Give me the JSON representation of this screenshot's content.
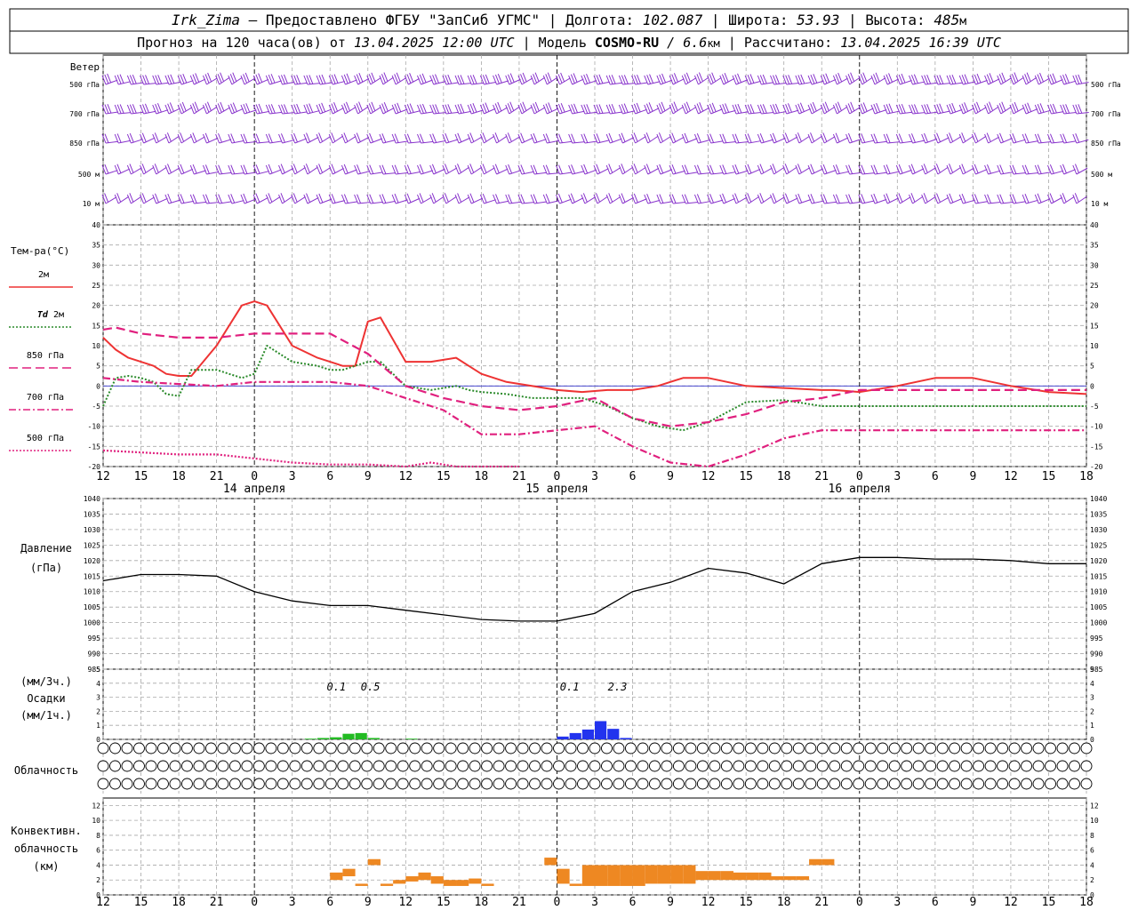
{
  "header": {
    "station": "Irk_Zima",
    "provider": " – Предоставлено ФГБУ \"ЗапСиб УГМС\" | ",
    "lon_label": "Долгота: ",
    "lon_value": "102.087",
    "lat_label": " | Широта: ",
    "lat_value": "53.93",
    "alt_label": " | Высота: ",
    "alt_value": "485",
    "alt_unit": "м",
    "forecast_label": "Прогноз на 120 часа(ов) от ",
    "forecast_start": "13.04.2025 12:00 UTC",
    "model_label": " | Модель ",
    "model_name": "COSMO-RU",
    "model_res": " / 6.6",
    "model_res_unit": "км",
    "calc_label": " | Рассчитано: ",
    "calc_time": "13.04.2025 16:39 UTC"
  },
  "labels": {
    "wind": "Ветер",
    "wind_levels": [
      "500 гПа",
      "700 гПа",
      "850 гПа",
      "500 м",
      "10  м"
    ],
    "temperature": "Тем-ра(°C)",
    "legend": [
      {
        "text": "2м",
        "prefix": "",
        "color": "#ee3333",
        "dash": ""
      },
      {
        "text": "2м",
        "prefix": "Td",
        "color": "#2a8a2a",
        "dash": "2 2"
      },
      {
        "text": "850 гПа",
        "prefix": "",
        "color": "#e0207e",
        "dash": "10 5"
      },
      {
        "text": "700 гПа",
        "prefix": "",
        "color": "#e0207e",
        "dash": "8 3 2 3"
      },
      {
        "text": "500 гПа",
        "prefix": "",
        "color": "#e0207e",
        "dash": "2 2"
      }
    ],
    "pressure": "Давление",
    "pressure_unit": "(гПа)",
    "precip": [
      "(мм/3ч.)",
      "Осадки",
      "(мм/1ч.)"
    ],
    "clouds": "Облачность",
    "convective": [
      "Конвективн.",
      "облачность",
      "(км)"
    ],
    "dates": [
      {
        "text": "14 апреля",
        "hour": 12
      },
      {
        "text": "15 апреля",
        "hour": 36
      },
      {
        "text": "16 апреля",
        "hour": 60
      }
    ],
    "precip_annotations": [
      {
        "text": "0.1",
        "hour": 18.5
      },
      {
        "text": "0.5",
        "hour": 21.2
      },
      {
        "text": "0.1",
        "hour": 37.0
      },
      {
        "text": "2.3",
        "hour": 40.8
      }
    ]
  },
  "chart_data": [
    {
      "type": "line",
      "title": "",
      "ylabel": "Тем-ра(°C)",
      "ylim": [
        -20,
        40
      ],
      "yticks": [
        -20,
        -15,
        -10,
        -5,
        0,
        5,
        10,
        15,
        20,
        25,
        30,
        35,
        40
      ],
      "hours": [
        0,
        3,
        6,
        9,
        12,
        15,
        18,
        21,
        24,
        27,
        30,
        33,
        36,
        39,
        42,
        45,
        48,
        51,
        54,
        57,
        60,
        63,
        66,
        69,
        72,
        75,
        78
      ],
      "time_labels": [
        "12",
        "15",
        "18",
        "21",
        "0",
        "3",
        "6",
        "9",
        "12",
        "15",
        "18",
        "21",
        "0",
        "3",
        "6",
        "9",
        "12",
        "15",
        "18",
        "21",
        "0",
        "3",
        "6",
        "9",
        "12",
        "15",
        "18"
      ],
      "x_domain": [
        0,
        78
      ],
      "series": [
        {
          "name": "2м",
          "color": "#ee3333",
          "width": 2,
          "dash": "",
          "x": [
            0,
            1,
            2,
            3,
            4,
            5,
            6,
            7,
            9,
            11,
            12,
            13,
            14,
            15,
            17,
            18,
            19,
            20,
            21,
            22,
            24,
            26,
            27,
            28,
            29,
            30,
            32,
            34,
            36,
            38,
            40,
            42,
            44,
            46,
            48,
            51,
            54,
            57,
            58,
            60,
            63,
            66,
            69,
            72,
            75,
            78
          ],
          "values": [
            12,
            9,
            7,
            6,
            5,
            3,
            2.5,
            2.5,
            10,
            20,
            21,
            20,
            15,
            10,
            7,
            6,
            5,
            5,
            16,
            17,
            6,
            6,
            6.5,
            7,
            5,
            3,
            1,
            0,
            -1,
            -1.5,
            -1,
            -1,
            0,
            2,
            2,
            0,
            -0.5,
            -1,
            -1,
            -1.5,
            0,
            2,
            2,
            0,
            -1.5,
            -2
          ]
        },
        {
          "name": "Td 2м",
          "color": "#2a8a2a",
          "width": 2,
          "dash": "2 2",
          "x": [
            0,
            1,
            2,
            3,
            4,
            5,
            6,
            7,
            9,
            11,
            12,
            13,
            14,
            15,
            17,
            18,
            19,
            20,
            21,
            22,
            24,
            26,
            27,
            28,
            29,
            30,
            32,
            34,
            36,
            38,
            40,
            42,
            44,
            46,
            48,
            51,
            54,
            57,
            58,
            60,
            63,
            66,
            69,
            72,
            75,
            78
          ],
          "values": [
            -5,
            2,
            2.5,
            2,
            1,
            -2,
            -2.5,
            4,
            4,
            2,
            3,
            10,
            8,
            6,
            5,
            4,
            4,
            5,
            6,
            6,
            0,
            -1,
            -0.5,
            0,
            -1,
            -1.5,
            -2,
            -3,
            -3,
            -3,
            -5,
            -8,
            -10,
            -11,
            -9,
            -4,
            -3.5,
            -5,
            -5,
            -5,
            -5,
            -5,
            -5,
            -5,
            -5,
            -5
          ]
        },
        {
          "name": "850 гПа",
          "color": "#e0207e",
          "width": 2.2,
          "dash": "10 5",
          "x": [
            0,
            1,
            3,
            6,
            9,
            12,
            15,
            18,
            21,
            24,
            27,
            30,
            33,
            36,
            39,
            42,
            45,
            48,
            51,
            54,
            57,
            60,
            63,
            66,
            69,
            72,
            75,
            78
          ],
          "values": [
            14,
            14.5,
            13,
            12,
            12,
            13,
            13,
            13,
            8,
            0,
            -3,
            -5,
            -6,
            -5,
            -3,
            -8,
            -10,
            -9,
            -7,
            -4,
            -3,
            -1,
            -1,
            -1,
            -1,
            -1,
            -1,
            -1
          ]
        },
        {
          "name": "700 гПа",
          "color": "#e0207e",
          "width": 2.2,
          "dash": "8 3 2 3",
          "x": [
            0,
            3,
            6,
            9,
            12,
            15,
            18,
            21,
            24,
            27,
            30,
            33,
            36,
            39,
            42,
            45,
            48,
            51,
            54,
            57,
            60,
            63,
            66,
            69,
            72,
            75,
            78
          ],
          "values": [
            2,
            1,
            0.5,
            0,
            1,
            1,
            1,
            0,
            -3,
            -6,
            -12,
            -12,
            -11,
            -10,
            -15,
            -19,
            -20,
            -17,
            -13,
            -11,
            -11,
            -11,
            -11,
            -11,
            -11,
            -11,
            -11
          ]
        },
        {
          "name": "500 гПа",
          "color": "#e0207e",
          "width": 2.2,
          "dash": "2 2",
          "x": [
            0,
            3,
            6,
            9,
            12,
            15,
            18,
            21,
            24,
            26,
            28,
            30,
            33
          ],
          "values": [
            -16,
            -16.5,
            -17,
            -17,
            -18,
            -19,
            -19.5,
            -19.5,
            -20,
            -19,
            -20,
            -20,
            -20
          ]
        }
      ]
    },
    {
      "type": "line",
      "title": "",
      "ylabel": "Давление (гПа)",
      "ylim": [
        985,
        1040
      ],
      "yticks": [
        985,
        990,
        995,
        1000,
        1005,
        1010,
        1015,
        1020,
        1025,
        1030,
        1035,
        1040
      ],
      "hours": [
        0,
        3,
        6,
        9,
        12,
        15,
        18,
        21,
        24,
        27,
        30,
        33,
        36,
        39,
        42,
        45,
        48,
        51,
        54,
        57,
        60,
        63,
        66,
        69,
        72,
        75,
        78
      ],
      "time_labels": [
        "12",
        "15",
        "18",
        "21",
        "0",
        "3",
        "6",
        "9",
        "12",
        "15",
        "18",
        "21",
        "0",
        "3",
        "6",
        "9",
        "12",
        "15",
        "18",
        "21",
        "0",
        "3",
        "6",
        "9",
        "12",
        "15",
        "18"
      ],
      "x_domain": [
        0,
        78
      ],
      "series": [
        {
          "name": "",
          "color": "#000000",
          "width": 1.3,
          "dash": "",
          "x": [
            0,
            3,
            6,
            9,
            12,
            15,
            18,
            21,
            24,
            27,
            30,
            33,
            36,
            39,
            42,
            45,
            48,
            51,
            54,
            57,
            60,
            63,
            66,
            69,
            72,
            75,
            78
          ],
          "values": [
            1013.5,
            1015.5,
            1015.5,
            1015,
            1010,
            1007,
            1005.5,
            1005.5,
            1004,
            1002.5,
            1001,
            1000.5,
            1000.5,
            1003,
            1010,
            1013,
            1017.5,
            1016,
            1012.5,
            1019,
            1021,
            1021,
            1020.5,
            1020.5,
            1020,
            1019,
            1019
          ]
        }
      ]
    },
    {
      "type": "bar",
      "title": "",
      "ylabel": "Осадки",
      "ylim": [
        0,
        5
      ],
      "yticks": [
        0,
        1,
        2,
        3,
        4,
        5
      ],
      "x_domain": [
        0,
        78
      ],
      "series": [
        {
          "name": "",
          "color": "#22bb22",
          "x": [
            16.5,
            17.5,
            18.5,
            19.5,
            20.5,
            21.5,
            24.5
          ],
          "values": [
            0.05,
            0.1,
            0.15,
            0.4,
            0.45,
            0.1,
            0.05
          ]
        },
        {
          "name": "",
          "color": "#2233ee",
          "x": [
            36.5,
            37.5,
            38.5,
            39.5,
            40.5,
            41.5
          ],
          "values": [
            0.2,
            0.45,
            0.7,
            1.3,
            0.75,
            0.1
          ]
        }
      ]
    },
    {
      "type": "table",
      "title": "",
      "ylabel": "Облачность",
      "note": "cloud cover fraction, 3 rows",
      "hours_start": 0,
      "step": 1,
      "rows": [
        [
          0,
          0,
          0,
          0,
          0,
          0,
          0,
          0,
          0,
          0,
          0,
          0,
          0,
          0,
          0,
          0,
          0,
          0,
          0,
          0,
          0,
          0,
          0,
          0,
          0,
          0,
          0,
          0,
          0,
          0,
          0,
          0,
          0,
          0,
          0,
          0,
          0,
          0,
          0,
          0,
          0,
          0,
          0,
          0,
          0,
          0,
          0,
          0,
          0,
          0,
          0,
          0,
          0,
          0,
          0,
          0,
          0,
          0,
          0,
          0,
          0,
          0,
          0,
          0,
          0,
          0,
          0,
          0,
          0,
          0,
          0,
          0,
          0,
          0,
          0,
          0,
          0,
          0,
          0,
          0,
          0,
          0,
          0
        ],
        [
          0,
          0,
          0,
          0,
          0,
          0,
          0,
          0,
          0,
          0,
          0,
          0,
          0,
          0,
          0,
          0,
          0,
          0,
          0,
          0,
          0,
          0,
          0,
          0,
          0,
          0,
          0,
          0,
          0,
          0,
          0,
          0,
          0,
          0,
          0,
          0,
          0,
          0,
          0,
          0,
          0,
          0,
          0,
          0,
          0,
          0,
          0,
          0,
          0,
          0,
          0,
          0,
          0,
          0,
          0,
          0,
          0,
          0,
          0,
          0,
          0,
          0,
          0,
          0,
          0,
          0,
          0,
          0,
          0,
          0,
          0,
          0,
          0,
          0,
          0,
          0,
          0,
          0,
          0,
          0,
          0,
          0,
          0
        ],
        [
          0,
          0,
          0,
          0,
          0,
          0,
          0,
          0,
          0,
          0,
          0,
          0,
          0,
          0,
          0,
          0,
          0,
          0,
          0,
          0,
          0,
          0,
          0,
          0,
          0,
          0,
          0,
          0,
          0,
          0,
          0,
          0,
          0,
          0,
          0,
          0,
          0,
          0,
          0,
          0,
          0,
          0,
          0,
          0,
          0,
          0,
          0,
          0,
          0,
          0,
          0,
          0,
          0,
          0,
          0,
          0,
          0,
          0,
          0,
          0,
          0,
          0,
          0,
          0,
          0,
          0,
          0,
          0,
          0,
          0,
          0,
          0,
          0,
          0,
          0,
          0,
          0,
          0,
          0,
          0,
          0,
          0,
          0
        ]
      ]
    },
    {
      "type": "bar",
      "title": "",
      "ylabel": "Конвективн. облачность (км)",
      "ylim": [
        0,
        13
      ],
      "yticks": [
        0,
        2,
        4,
        6,
        8,
        10,
        12
      ],
      "x_domain": [
        0,
        78
      ],
      "color": "#ee8822",
      "bars": [
        {
          "x": 18.5,
          "bottom": 2.0,
          "top": 3.0
        },
        {
          "x": 19.5,
          "bottom": 2.5,
          "top": 3.5
        },
        {
          "x": 20.5,
          "bottom": 1.2,
          "top": 1.5
        },
        {
          "x": 21.5,
          "bottom": 4.0,
          "top": 4.8
        },
        {
          "x": 22.5,
          "bottom": 1.2,
          "top": 1.5
        },
        {
          "x": 23.5,
          "bottom": 1.5,
          "top": 2.0
        },
        {
          "x": 24.5,
          "bottom": 1.8,
          "top": 2.5
        },
        {
          "x": 25.5,
          "bottom": 2.0,
          "top": 3.0
        },
        {
          "x": 26.5,
          "bottom": 1.5,
          "top": 2.5
        },
        {
          "x": 27.5,
          "bottom": 1.2,
          "top": 2.0
        },
        {
          "x": 28.5,
          "bottom": 1.2,
          "top": 2.0
        },
        {
          "x": 29.5,
          "bottom": 1.5,
          "top": 2.2
        },
        {
          "x": 30.5,
          "bottom": 1.2,
          "top": 1.5
        },
        {
          "x": 35.5,
          "bottom": 4.0,
          "top": 5.0
        },
        {
          "x": 36.5,
          "bottom": 1.5,
          "top": 3.5
        },
        {
          "x": 37.5,
          "bottom": 1.2,
          "top": 1.5
        },
        {
          "x": 38.5,
          "bottom": 1.2,
          "top": 4.0
        },
        {
          "x": 39.5,
          "bottom": 1.2,
          "top": 4.0
        },
        {
          "x": 40.5,
          "bottom": 1.2,
          "top": 4.0
        },
        {
          "x": 41.5,
          "bottom": 1.2,
          "top": 4.0
        },
        {
          "x": 42.5,
          "bottom": 1.2,
          "top": 4.0
        },
        {
          "x": 43.5,
          "bottom": 1.5,
          "top": 4.0
        },
        {
          "x": 44.5,
          "bottom": 1.5,
          "top": 4.0
        },
        {
          "x": 45.5,
          "bottom": 1.5,
          "top": 4.0
        },
        {
          "x": 46.5,
          "bottom": 1.5,
          "top": 4.0
        },
        {
          "x": 47.5,
          "bottom": 2.0,
          "top": 3.2
        },
        {
          "x": 48.5,
          "bottom": 2.0,
          "top": 3.2
        },
        {
          "x": 49.5,
          "bottom": 2.0,
          "top": 3.2
        },
        {
          "x": 50.5,
          "bottom": 2.0,
          "top": 3.0
        },
        {
          "x": 51.5,
          "bottom": 2.0,
          "top": 3.0
        },
        {
          "x": 52.5,
          "bottom": 2.0,
          "top": 3.0
        },
        {
          "x": 53.5,
          "bottom": 2.0,
          "top": 2.5
        },
        {
          "x": 54.5,
          "bottom": 2.0,
          "top": 2.5
        },
        {
          "x": 55.5,
          "bottom": 2.0,
          "top": 2.5
        },
        {
          "x": 56.5,
          "bottom": 4.0,
          "top": 4.8
        },
        {
          "x": 57.5,
          "bottom": 4.0,
          "top": 4.8
        }
      ]
    }
  ],
  "wind_speed_color": "#8833cc"
}
